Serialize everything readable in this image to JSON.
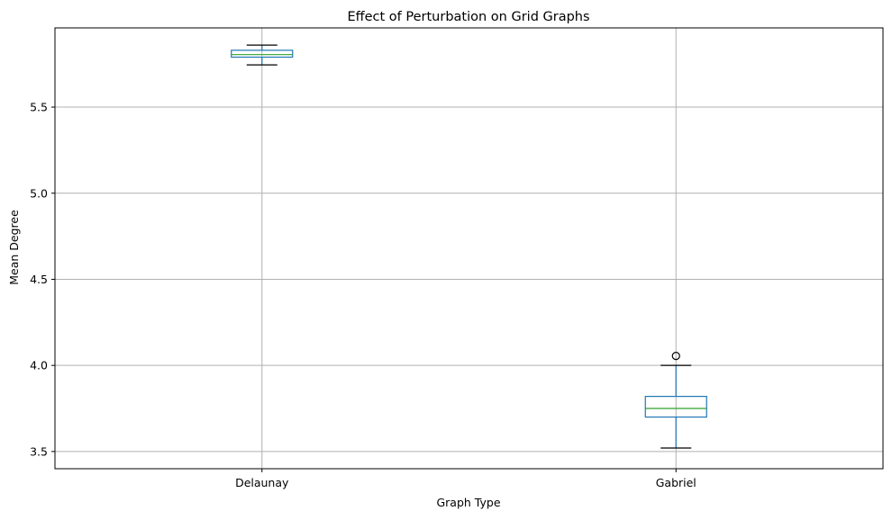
{
  "chart_data": {
    "type": "box",
    "title": "Effect of Perturbation on Grid Graphs",
    "xlabel": "Graph Type",
    "ylabel": "Mean Degree",
    "categories": [
      "Delaunay",
      "Gabriel"
    ],
    "ylim": [
      3.4,
      5.96
    ],
    "yticks": [
      3.5,
      4.0,
      4.5,
      5.0,
      5.5
    ],
    "ytick_labels": [
      "3.5",
      "4.0",
      "4.5",
      "5.0",
      "5.5"
    ],
    "grid": true,
    "boxes": [
      {
        "category": "Delaunay",
        "whisker_low": 5.745,
        "q1": 5.79,
        "median": 5.805,
        "q3": 5.83,
        "whisker_high": 5.86,
        "outliers": []
      },
      {
        "category": "Gabriel",
        "whisker_low": 3.52,
        "q1": 3.7,
        "median": 3.75,
        "q3": 3.82,
        "whisker_high": 4.0,
        "outliers": [
          4.055
        ]
      }
    ],
    "colors": {
      "box": "#1f77b4",
      "median": "#2ca02c",
      "whisker_cap": "#000000",
      "grid": "#b0b0b0",
      "outlier": "#000000"
    }
  }
}
